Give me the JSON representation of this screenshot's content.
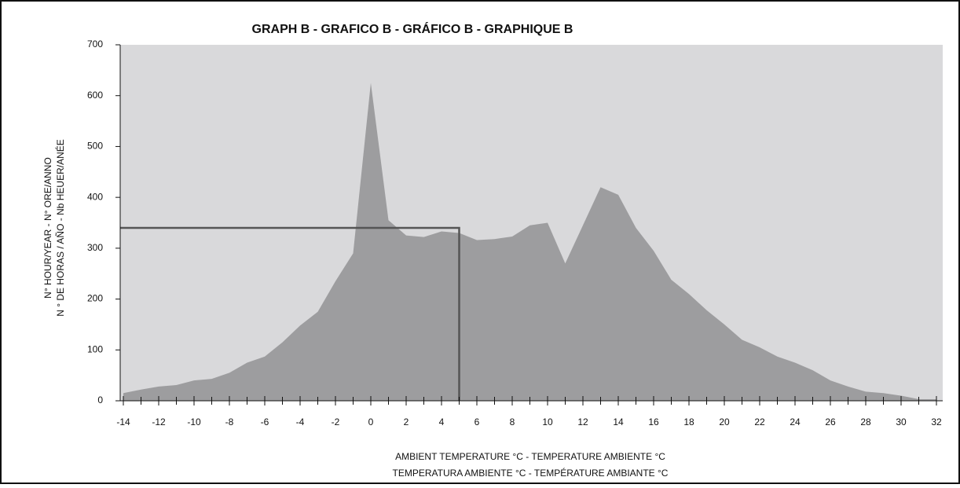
{
  "chart_data": {
    "type": "area",
    "title": "GRAPH B - GRAFICO B - GRÁFICO  B - GRAPHIQUE B",
    "ylabel": [
      "N° HOUR/YEAR - N° ORE/ANNO",
      "N ° DE HORAS / AÑO - Nb HEUER/ANÉE"
    ],
    "xlabel": [
      "AMBIENT TEMPERATURE °C - TEMPERATURE AMBIENTE °C",
      "TEMPERATURA AMBIENTE °C - TEMPÉRATURE AMBIANTE °C"
    ],
    "x": [
      -14,
      -13,
      -12,
      -11,
      -10,
      -9,
      -8,
      -7,
      -6,
      -5,
      -4,
      -3,
      -2,
      -1,
      0,
      1,
      2,
      3,
      4,
      5,
      6,
      7,
      8,
      9,
      10,
      11,
      12,
      13,
      14,
      15,
      16,
      17,
      18,
      19,
      20,
      21,
      22,
      23,
      24,
      25,
      26,
      27,
      28,
      29,
      30,
      31,
      32
    ],
    "values": [
      15,
      22,
      28,
      31,
      40,
      43,
      55,
      75,
      87,
      115,
      148,
      175,
      235,
      290,
      625,
      355,
      325,
      322,
      333,
      330,
      316,
      318,
      323,
      345,
      350,
      270,
      345,
      420,
      405,
      340,
      295,
      238,
      210,
      178,
      150,
      120,
      105,
      87,
      75,
      60,
      40,
      28,
      18,
      15,
      10,
      3,
      3
    ],
    "color": "#9d9d9f",
    "background": "#d9d9db",
    "marker": {
      "x": 5,
      "y": 340
    },
    "xlim": [
      -14,
      32
    ],
    "xticks": [
      -14,
      -12,
      -10,
      -8,
      -6,
      -4,
      -2,
      0,
      2,
      4,
      6,
      8,
      10,
      12,
      14,
      16,
      18,
      20,
      22,
      24,
      26,
      28,
      30,
      32
    ],
    "ylim": [
      0,
      700
    ],
    "yticks": [
      0,
      100,
      200,
      300,
      400,
      500,
      600,
      700
    ]
  }
}
